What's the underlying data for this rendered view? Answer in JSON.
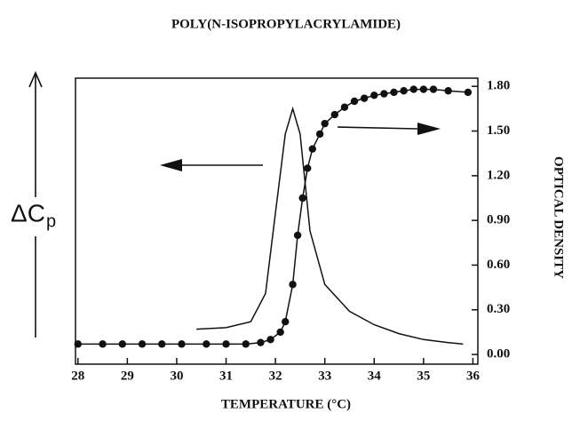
{
  "chart_data": {
    "type": "line",
    "title": "POLY(N-ISOPROPYLACRYLAMIDE)",
    "xlabel": "TEMPERATURE (°C)",
    "ylabel": "ΔC",
    "ylabel_subscript": "p",
    "y2label": "OPTICAL DENSITY",
    "xlim": [
      27.95,
      36.1
    ],
    "xticks": [
      28,
      29,
      30,
      31,
      32,
      33,
      34,
      35,
      36
    ],
    "ylim": [
      -0.065,
      1.855
    ],
    "y2lim": [
      -0.065,
      1.855
    ],
    "y2ticks": [
      {
        "value": 0,
        "label": "0.00"
      },
      {
        "value": 0.3,
        "label": "0.30"
      },
      {
        "value": 0.6,
        "label": "0.60"
      },
      {
        "value": 0.9,
        "label": "0.90"
      },
      {
        "value": 1.2,
        "label": "1.20"
      },
      {
        "value": 1.5,
        "label": "1.50"
      },
      {
        "value": 1.8,
        "label": "1.80"
      }
    ],
    "series": [
      {
        "axis": "y",
        "color": "#111111",
        "markers": false,
        "x": [
          30.4,
          31.0,
          31.5,
          31.8,
          32.0,
          32.2,
          32.35,
          32.5,
          32.7,
          33.0,
          33.5,
          34.0,
          34.5,
          35.0,
          35.5,
          35.8
        ],
        "values": [
          0.17,
          0.18,
          0.22,
          0.41,
          0.95,
          1.48,
          1.65,
          1.48,
          0.83,
          0.47,
          0.29,
          0.2,
          0.14,
          0.1,
          0.08,
          0.07
        ]
      },
      {
        "axis": "y2",
        "color": "#111111",
        "markers": true,
        "x": [
          28.0,
          28.5,
          28.9,
          29.3,
          29.7,
          30.1,
          30.6,
          31.0,
          31.4,
          31.7,
          31.9,
          32.1,
          32.2,
          32.35,
          32.45,
          32.55,
          32.65,
          32.75,
          32.9,
          33.0,
          33.2,
          33.4,
          33.6,
          33.8,
          34.0,
          34.2,
          34.4,
          34.6,
          34.8,
          35.0,
          35.2,
          35.5,
          35.9
        ],
        "values": [
          0.07,
          0.07,
          0.07,
          0.07,
          0.07,
          0.07,
          0.07,
          0.07,
          0.07,
          0.08,
          0.1,
          0.15,
          0.22,
          0.47,
          0.8,
          1.05,
          1.25,
          1.38,
          1.48,
          1.55,
          1.61,
          1.66,
          1.7,
          1.72,
          1.74,
          1.75,
          1.76,
          1.77,
          1.78,
          1.78,
          1.78,
          1.77,
          1.76
        ]
      }
    ]
  }
}
